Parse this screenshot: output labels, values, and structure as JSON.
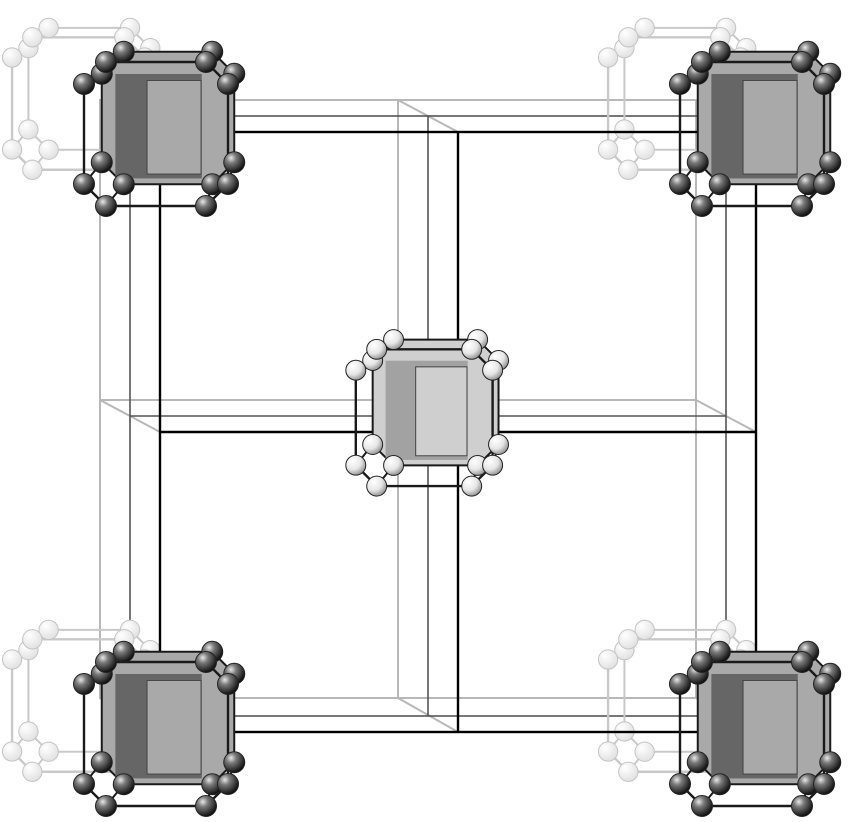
{
  "figure": {
    "description_text": "",
    "colors": {
      "front_frame": "#000000",
      "back_frame": "#b8b8b8",
      "dark_cage_face": "#5a5a5a",
      "dark_cage_inner": "#a9a9a9",
      "dark_atom": "#2c2c2c",
      "light_atom": "#f2f2f2",
      "center_cage_face": "#9a9a9a",
      "center_cage_inner": "#cfcfcf",
      "ghost_cage_stroke": "#c9c9c9"
    },
    "clusters": [
      {
        "id": "corner-top-left",
        "style": "dark"
      },
      {
        "id": "corner-top-right",
        "style": "dark"
      },
      {
        "id": "corner-bottom-left",
        "style": "dark"
      },
      {
        "id": "corner-bottom-right",
        "style": "dark"
      },
      {
        "id": "body-center",
        "style": "light"
      }
    ],
    "ghost_clusters": [
      {
        "id": "ghost-top-left"
      },
      {
        "id": "ghost-top-right"
      },
      {
        "id": "ghost-bottom-left"
      },
      {
        "id": "ghost-bottom-right"
      }
    ]
  }
}
